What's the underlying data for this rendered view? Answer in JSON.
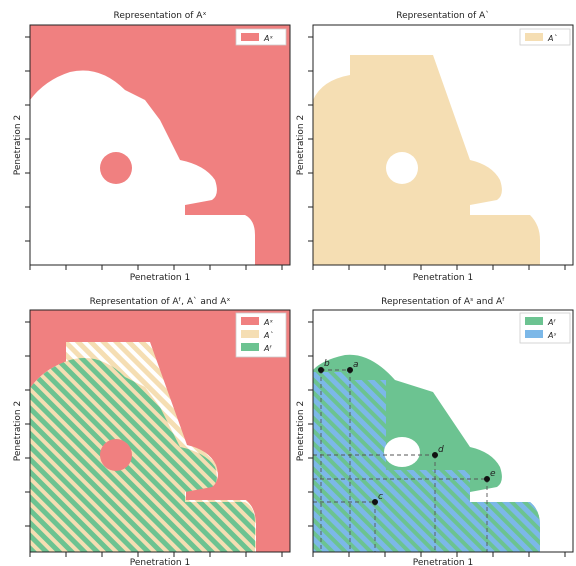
{
  "colors": {
    "a_x": "#f08080",
    "a_check": "#f5deb3",
    "a_f": "#6cc391",
    "a_s": "#7cb8e8",
    "hole": "#ffffff"
  },
  "panels": [
    {
      "title": "Representation of Aˣ",
      "xlabel": "Penetration 1",
      "ylabel": "Penetration 2",
      "legend": [
        {
          "label": "Aˣ",
          "color": "#f08080"
        }
      ]
    },
    {
      "title": "Representation of Aˋ",
      "xlabel": "Penetration 1",
      "ylabel": "Penetration 2",
      "legend": [
        {
          "label": "Aˋ",
          "color": "#f5deb3"
        }
      ]
    },
    {
      "title": "Representation of Aᶠ, Aˋ and Aˣ",
      "xlabel": "Penetration 1",
      "ylabel": "Penetration 2",
      "legend": [
        {
          "label": "Aˣ",
          "color": "#f08080"
        },
        {
          "label": "Aˋ",
          "color": "#f5deb3"
        },
        {
          "label": "Aᶠ",
          "color": "#6cc391"
        }
      ]
    },
    {
      "title": "Representation of Aˢ and Aᶠ",
      "xlabel": "Penetration 1",
      "ylabel": "Penetration 2",
      "legend": [
        {
          "label": "Aᶠ",
          "color": "#6cc391"
        },
        {
          "label": "Aˢ",
          "color": "#7cb8e8"
        }
      ]
    }
  ],
  "points": [
    {
      "label": "a"
    },
    {
      "label": "b"
    },
    {
      "label": "c"
    },
    {
      "label": "d"
    },
    {
      "label": "e"
    }
  ]
}
